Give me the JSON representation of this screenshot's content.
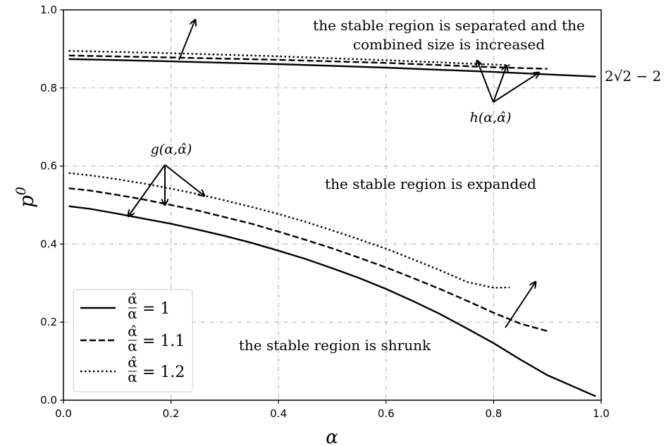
{
  "chart_data": {
    "type": "line",
    "xlabel": "α",
    "ylabel": "p",
    "ylabel_superscript": "0",
    "xlim": [
      0.0,
      1.0
    ],
    "ylim": [
      0.0,
      1.0
    ],
    "xticks": [
      "0.0",
      "0.2",
      "0.4",
      "0.6",
      "0.8",
      "1.0"
    ],
    "yticks": [
      "0.0",
      "0.2",
      "0.4",
      "0.6",
      "0.8",
      "1.0"
    ],
    "grid": true,
    "legend_position": "lower-left",
    "series": [
      {
        "name": "α̂/α = 1",
        "legend_frac_num": "α̂",
        "legend_frac_den": "α",
        "legend_rhs": "= 1",
        "style": "solid",
        "lower": {
          "x": [
            0.01,
            0.05,
            0.1,
            0.15,
            0.2,
            0.25,
            0.3,
            0.35,
            0.4,
            0.45,
            0.5,
            0.55,
            0.6,
            0.65,
            0.7,
            0.75,
            0.8,
            0.85,
            0.9,
            0.95,
            0.99
          ],
          "y": [
            0.497,
            0.49,
            0.478,
            0.465,
            0.452,
            0.437,
            0.421,
            0.403,
            0.383,
            0.362,
            0.338,
            0.313,
            0.285,
            0.254,
            0.221,
            0.184,
            0.146,
            0.104,
            0.064,
            0.034,
            0.01
          ]
        },
        "upper": {
          "x": [
            0.01,
            0.2,
            0.4,
            0.6,
            0.8,
            0.99
          ],
          "y": [
            0.874,
            0.868,
            0.861,
            0.852,
            0.841,
            0.829
          ]
        }
      },
      {
        "name": "α̂/α = 1.1",
        "legend_frac_num": "α̂",
        "legend_frac_den": "α",
        "legend_rhs": "= 1.1",
        "style": "dashed",
        "lower": {
          "x": [
            0.01,
            0.05,
            0.1,
            0.15,
            0.2,
            0.25,
            0.3,
            0.35,
            0.4,
            0.45,
            0.5,
            0.55,
            0.6,
            0.65,
            0.7,
            0.75,
            0.8,
            0.85,
            0.9
          ],
          "y": [
            0.543,
            0.537,
            0.526,
            0.514,
            0.5,
            0.486,
            0.469,
            0.452,
            0.432,
            0.411,
            0.389,
            0.365,
            0.34,
            0.313,
            0.285,
            0.255,
            0.224,
            0.196,
            0.177
          ]
        },
        "upper": {
          "x": [
            0.01,
            0.2,
            0.4,
            0.6,
            0.8,
            0.9
          ],
          "y": [
            0.883,
            0.878,
            0.872,
            0.864,
            0.853,
            0.849
          ]
        }
      },
      {
        "name": "α̂/α = 1.2",
        "legend_frac_num": "α̂",
        "legend_frac_den": "α",
        "legend_rhs": "= 1.2",
        "style": "dotted",
        "lower": {
          "x": [
            0.01,
            0.05,
            0.1,
            0.15,
            0.2,
            0.25,
            0.3,
            0.35,
            0.4,
            0.45,
            0.5,
            0.55,
            0.6,
            0.65,
            0.7,
            0.75,
            0.8,
            0.83
          ],
          "y": [
            0.582,
            0.576,
            0.566,
            0.555,
            0.542,
            0.528,
            0.512,
            0.495,
            0.477,
            0.457,
            0.435,
            0.412,
            0.388,
            0.361,
            0.333,
            0.303,
            0.288,
            0.289
          ]
        },
        "upper": {
          "x": [
            0.01,
            0.2,
            0.4,
            0.6,
            0.8,
            0.83
          ],
          "y": [
            0.895,
            0.889,
            0.881,
            0.871,
            0.86,
            0.858
          ]
        }
      }
    ],
    "annotations": {
      "top_line1": "the stable region is separated and the",
      "top_line2": "combined size is increased",
      "middle": "the  stable region is expanded",
      "bottom": "the  stable region is shrunk",
      "h_label": "h(α,α̂)",
      "g_label": "g(α,α̂)",
      "right_value": "2√2 − 2"
    }
  }
}
